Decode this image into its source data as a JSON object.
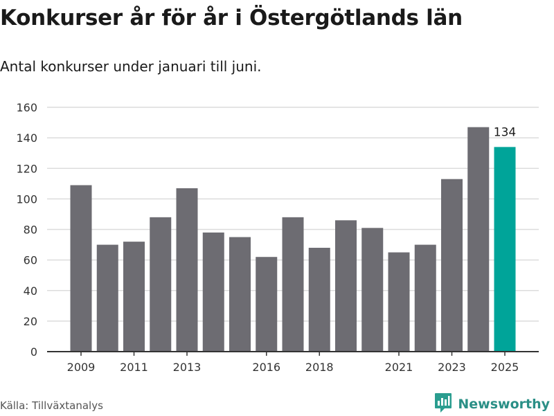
{
  "title": "Konkurser år för år i Östergötlands län",
  "subtitle": "Antal konkurser under januari till juni.",
  "source": "Källa: Tillväxtanalys",
  "brand": {
    "name": "Newsworthy",
    "icon": "newsworthy-logo-icon",
    "color": "#2a9d8f"
  },
  "colors": {
    "bar": "#6d6c72",
    "highlight": "#00a499",
    "grid": "#dcdcdc",
    "axis": "#333333"
  },
  "chart_data": {
    "type": "bar",
    "title": "Konkurser år för år i Östergötlands län",
    "subtitle": "Antal konkurser under januari till juni.",
    "xlabel": "",
    "ylabel": "",
    "categories": [
      "2009",
      "2010",
      "2011",
      "2012",
      "2013",
      "2014",
      "2015",
      "2016",
      "2017",
      "2018",
      "2019",
      "2020",
      "2021",
      "2022",
      "2023",
      "2024",
      "2025"
    ],
    "values": [
      109,
      70,
      72,
      88,
      107,
      78,
      75,
      62,
      88,
      68,
      86,
      81,
      65,
      70,
      113,
      147,
      134
    ],
    "highlight_index": 16,
    "data_labels": [
      {
        "index": 16,
        "text": "134"
      }
    ],
    "x_tick_labels": [
      "2009",
      "2011",
      "2013",
      "2016",
      "2018",
      "2021",
      "2023",
      "2025"
    ],
    "y_ticks": [
      0,
      20,
      40,
      60,
      80,
      100,
      120,
      140,
      160
    ],
    "ylim": [
      0,
      160
    ],
    "grid": true,
    "legend": "none"
  }
}
